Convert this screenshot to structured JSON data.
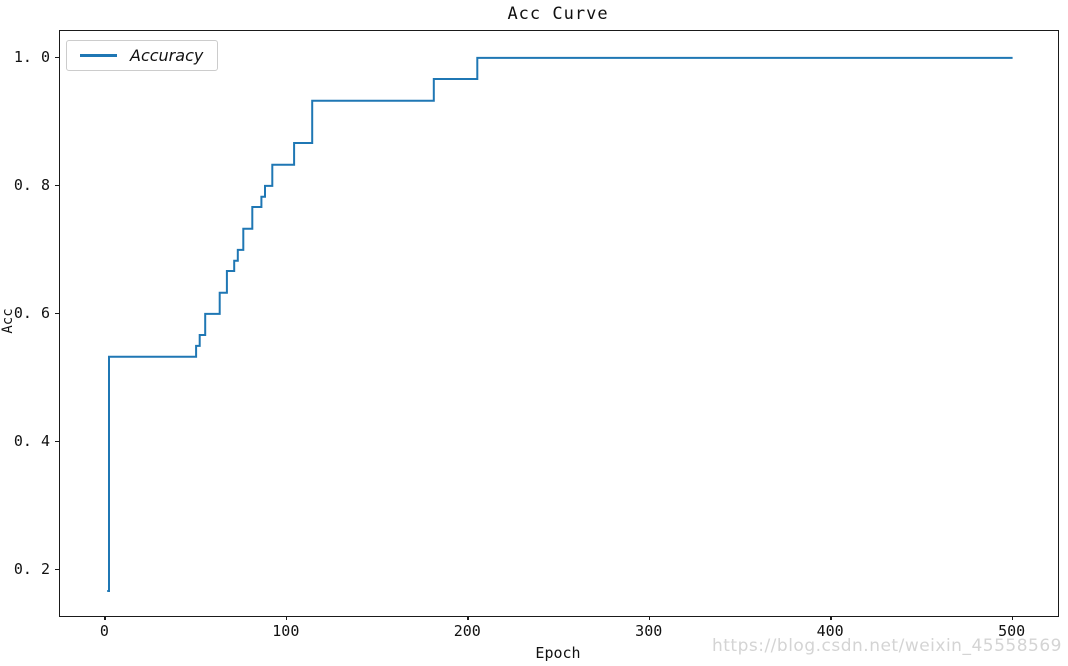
{
  "watermark": "https://blog.csdn.net/weixin_45558569",
  "legend": {
    "label": "Accuracy",
    "position": "upper left"
  },
  "colors": {
    "line": "#1f77b4",
    "spine": "#1a1a1a",
    "watermark_text": "#d4d4d4",
    "legend_border": "#cccccc"
  },
  "chart_data": {
    "type": "line",
    "title": "Acc Curve",
    "xlabel": "Epoch",
    "ylabel": "Acc",
    "grid": false,
    "legend_position": "upper left",
    "xlim": [
      -25,
      525
    ],
    "ylim": [
      0.128,
      1.042
    ],
    "xticks": [
      {
        "v": 0,
        "label": "0"
      },
      {
        "v": 100,
        "label": "100"
      },
      {
        "v": 200,
        "label": "200"
      },
      {
        "v": 300,
        "label": "300"
      },
      {
        "v": 400,
        "label": "400"
      },
      {
        "v": 500,
        "label": "500"
      }
    ],
    "yticks": [
      {
        "v": 1.0,
        "label": "1. 0"
      },
      {
        "v": 0.8,
        "label": "0. 8"
      },
      {
        "v": 0.6,
        "label": "0. 6"
      },
      {
        "v": 0.4,
        "label": "0. 4"
      },
      {
        "v": 0.2,
        "label": "0. 2"
      }
    ],
    "series": [
      {
        "name": "Accuracy",
        "color": "#1f77b4",
        "step": "post",
        "points": [
          [
            1,
            0.167
          ],
          [
            2,
            0.533
          ],
          [
            50,
            0.55
          ],
          [
            52,
            0.567
          ],
          [
            55,
            0.6
          ],
          [
            63,
            0.633
          ],
          [
            67,
            0.667
          ],
          [
            71,
            0.683
          ],
          [
            73,
            0.7
          ],
          [
            76,
            0.733
          ],
          [
            81,
            0.767
          ],
          [
            86,
            0.783
          ],
          [
            88,
            0.8
          ],
          [
            92,
            0.833
          ],
          [
            104,
            0.867
          ],
          [
            114,
            0.933
          ],
          [
            181,
            0.967
          ],
          [
            205,
            1.0
          ],
          [
            500,
            1.0
          ]
        ]
      }
    ]
  }
}
